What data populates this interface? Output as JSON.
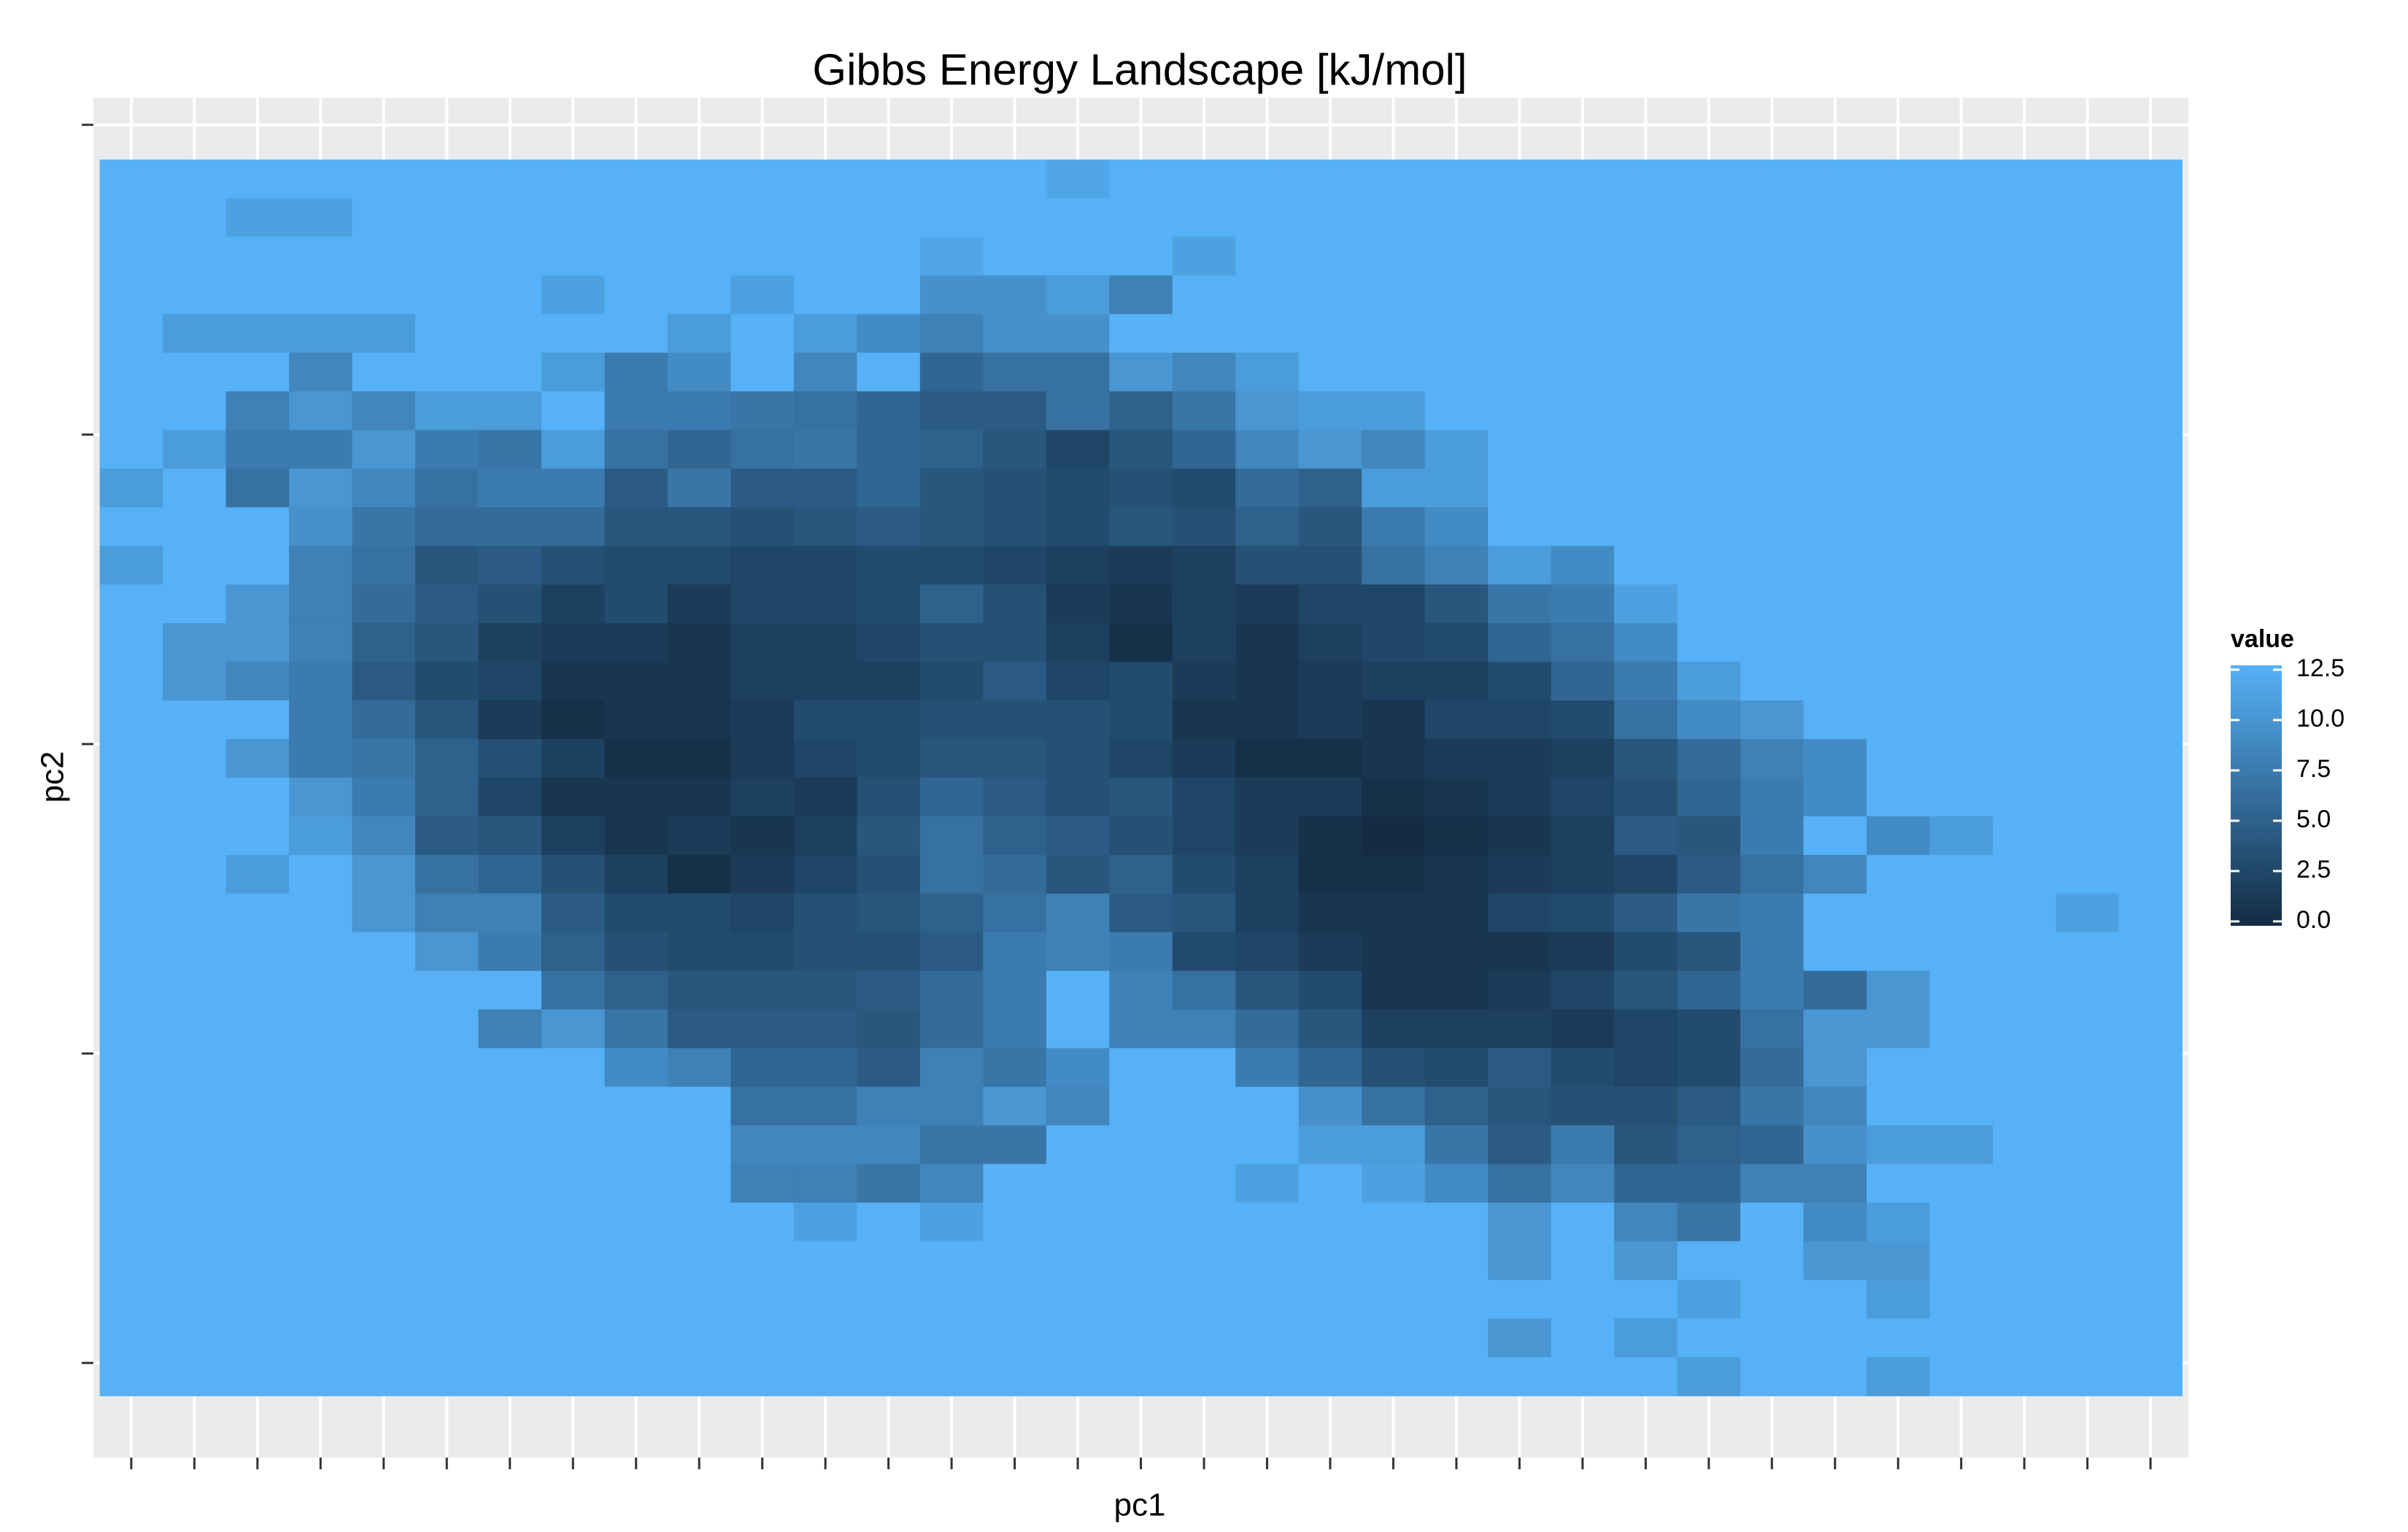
{
  "chart_data": {
    "type": "heatmap",
    "title": "Gibbs Energy Landscape [kJ/mol]",
    "xlabel": "pc1",
    "ylabel": "pc2",
    "x": [
      1,
      2,
      3,
      4,
      5,
      6,
      7,
      8,
      9,
      10,
      11,
      12,
      13,
      14,
      15,
      16,
      17,
      18,
      19,
      20,
      21,
      22,
      23,
      24,
      25,
      26,
      27,
      28,
      29,
      30,
      31,
      32,
      33
    ],
    "y": [
      32,
      31,
      30,
      29,
      28,
      27,
      26,
      25,
      24,
      23,
      22,
      21,
      20,
      19,
      18,
      17,
      16,
      15,
      14,
      13,
      12,
      11,
      10,
      9,
      8,
      7,
      6,
      5,
      4,
      3,
      2,
      1
    ],
    "xlim": [
      0.4,
      33.6
    ],
    "ylim": [
      -1.1,
      34.1
    ],
    "xticks": [
      1,
      2,
      3,
      4,
      5,
      6,
      7,
      8,
      9,
      10,
      11,
      12,
      13,
      14,
      15,
      16,
      17,
      18,
      19,
      20,
      21,
      22,
      23,
      24,
      25,
      26,
      27,
      28,
      29,
      30,
      31,
      32,
      33
    ],
    "yticks": [
      1.35,
      9.36,
      17.37,
      25.38,
      33.4
    ],
    "grid": true,
    "legend": {
      "title": "value",
      "position": "right",
      "colors": [
        "#132B43",
        "#56B1F7"
      ],
      "lim": [
        0,
        12.5
      ],
      "ticks": [
        {
          "value": 0,
          "label": "0.0"
        },
        2.5,
        {
          "value": 5,
          "label": "5.0"
        },
        7.5,
        {
          "value": 10,
          "label": "10.0"
        },
        12.5
      ]
    },
    "z": [
      [
        12.5,
        12.5,
        12.5,
        12.5,
        12.5,
        12.5,
        12.5,
        12.5,
        12.5,
        12.5,
        12.5,
        12.5,
        12.5,
        12.5,
        12.5,
        11.5,
        12.5,
        12.5,
        12.5,
        12.5,
        12.5,
        12.5,
        12.5,
        12.5,
        12.5,
        12.5,
        12.5,
        12.5,
        12.5,
        12.5,
        12.5,
        12.5,
        12.5
      ],
      [
        12.5,
        12.5,
        11,
        11,
        12.5,
        12.5,
        12.5,
        12.5,
        12.5,
        12.5,
        12.5,
        12.5,
        12.5,
        12.5,
        12.5,
        12.5,
        12.5,
        12.5,
        12.5,
        12.5,
        12.5,
        12.5,
        12.5,
        12.5,
        12.5,
        12.5,
        12.5,
        12.5,
        12.5,
        12.5,
        12.5,
        12.5,
        12.5
      ],
      [
        12.5,
        12.5,
        12.5,
        12.5,
        12.5,
        12.5,
        12.5,
        12.5,
        12.5,
        12.5,
        12.5,
        12.5,
        12.5,
        11.5,
        12.5,
        12.5,
        12.5,
        11,
        12.5,
        12.5,
        12.5,
        12.5,
        12.5,
        12.5,
        12.5,
        12.5,
        12.5,
        12.5,
        12.5,
        12.5,
        12.5,
        12.5,
        12.5
      ],
      [
        12.5,
        12.5,
        12.5,
        12.5,
        12.5,
        12.5,
        12.5,
        11,
        12.5,
        12.5,
        11,
        12.5,
        12.5,
        9.5,
        9.5,
        10.5,
        8,
        12.5,
        12.5,
        12.5,
        12.5,
        12.5,
        12.5,
        12.5,
        12.5,
        12.5,
        12.5,
        12.5,
        12.5,
        12.5,
        12.5,
        12.5,
        12.5
      ],
      [
        12.5,
        10.5,
        10.5,
        10.5,
        10.5,
        12.5,
        12.5,
        12.5,
        12.5,
        10.5,
        12.5,
        10.5,
        9,
        8,
        9.5,
        9.5,
        12.5,
        12.5,
        12.5,
        12.5,
        12.5,
        12.5,
        12.5,
        12.5,
        12.5,
        12.5,
        12.5,
        12.5,
        12.5,
        12.5,
        12.5,
        12.5,
        12.5
      ],
      [
        12.5,
        12.5,
        12.5,
        8.5,
        12.5,
        12.5,
        12.5,
        10.5,
        7.5,
        9,
        12.5,
        8.5,
        12.5,
        5.5,
        6.5,
        6.5,
        10,
        8.5,
        10.5,
        12.5,
        12.5,
        12.5,
        12.5,
        12.5,
        12.5,
        12.5,
        12.5,
        12.5,
        12.5,
        12.5,
        12.5,
        12.5,
        12.5
      ],
      [
        12.5,
        12.5,
        8,
        10,
        8.5,
        10.5,
        10.5,
        12.5,
        7.5,
        7.5,
        7,
        6.5,
        5.5,
        4.5,
        4.5,
        6.5,
        5,
        7,
        10,
        10.5,
        10.5,
        12.5,
        12.5,
        12.5,
        12.5,
        12.5,
        12.5,
        12.5,
        12.5,
        12.5,
        12.5,
        12.5,
        12.5
      ],
      [
        12.5,
        10.5,
        7.5,
        7.5,
        10,
        7.5,
        7,
        10.5,
        6.5,
        5.5,
        6.5,
        7,
        5.5,
        5,
        4,
        2.5,
        4,
        5.5,
        8.5,
        10,
        8.5,
        10.5,
        12.5,
        12.5,
        12.5,
        12.5,
        12.5,
        12.5,
        12.5,
        12.5,
        12.5,
        12.5,
        12.5
      ],
      [
        10.5,
        12.5,
        6.5,
        10,
        8.5,
        6.5,
        7.5,
        7.5,
        4.5,
        7,
        4.5,
        4.5,
        5.5,
        4,
        3.5,
        3,
        3.5,
        3,
        6,
        5,
        10.5,
        10.5,
        12.5,
        12.5,
        12.5,
        12.5,
        12.5,
        12.5,
        12.5,
        12.5,
        12.5,
        12.5,
        12.5
      ],
      [
        12.5,
        12.5,
        12.5,
        9.5,
        7,
        6,
        6,
        6,
        4,
        4,
        3.5,
        4,
        4.5,
        4,
        3.5,
        3,
        4,
        3.5,
        5,
        4,
        7.5,
        9,
        12.5,
        12.5,
        12.5,
        12.5,
        12.5,
        12.5,
        12.5,
        12.5,
        12.5,
        12.5,
        12.5
      ],
      [
        10.5,
        12.5,
        12.5,
        8,
        6.5,
        4,
        4.5,
        3.5,
        3,
        3,
        2.5,
        2.5,
        3,
        3,
        2.5,
        2,
        1.5,
        2,
        3.5,
        3.5,
        6.5,
        8,
        10.5,
        9,
        12.5,
        12.5,
        12.5,
        12.5,
        12.5,
        12.5,
        12.5,
        12.5,
        12.5
      ],
      [
        12.5,
        12.5,
        10,
        8,
        6,
        4.5,
        3.5,
        2,
        3,
        1.5,
        2.5,
        2.5,
        3,
        5,
        3.5,
        1.5,
        1,
        2,
        1.5,
        2.5,
        2.5,
        4,
        7,
        7.5,
        11,
        12.5,
        12.5,
        12.5,
        12.5,
        12.5,
        12.5,
        12.5,
        12.5
      ],
      [
        12.5,
        10,
        10,
        8,
        5,
        4,
        2,
        1.5,
        1.5,
        1,
        2,
        2,
        2.5,
        3.5,
        3.5,
        2,
        0.5,
        2,
        1,
        2,
        2.5,
        3,
        5.5,
        6.5,
        9,
        12.5,
        12.5,
        12.5,
        12.5,
        12.5,
        12.5,
        12.5,
        12.5
      ],
      [
        12.5,
        10,
        8.5,
        7.5,
        4.5,
        3,
        2.5,
        1,
        1,
        1,
        2,
        2,
        2,
        3,
        4.5,
        2.5,
        3,
        1.5,
        1,
        1.5,
        2,
        2,
        3,
        5.5,
        7.5,
        10.5,
        12.5,
        12.5,
        12.5,
        12.5,
        12.5,
        12.5,
        12.5
      ],
      [
        12.5,
        12.5,
        12.5,
        7.5,
        6,
        4,
        1.5,
        0.5,
        1,
        1,
        1.5,
        3,
        3,
        3.5,
        3.5,
        3.5,
        3,
        1,
        1,
        1.5,
        1,
        2.5,
        2.5,
        3,
        6.5,
        9,
        10,
        12.5,
        12.5,
        12.5,
        12.5,
        12.5,
        12.5
      ],
      [
        12.5,
        12.5,
        10,
        7.5,
        7,
        5,
        3.5,
        2,
        0.5,
        0.5,
        1.5,
        2.5,
        3,
        4,
        4,
        3.5,
        2.5,
        1.5,
        0.5,
        0.5,
        1,
        1.5,
        1.5,
        2,
        4,
        6,
        8,
        9,
        12.5,
        12.5,
        12.5,
        12.5,
        12.5
      ],
      [
        12.5,
        12.5,
        12.5,
        10,
        7.5,
        5,
        2.5,
        1,
        1,
        1,
        2,
        1.5,
        3.5,
        5.5,
        4.5,
        3.5,
        4,
        2.5,
        1.5,
        1.5,
        0.5,
        1,
        1.5,
        2.5,
        3.5,
        5.5,
        7.5,
        9,
        12.5,
        12.5,
        12.5,
        12.5,
        12.5
      ],
      [
        12.5,
        12.5,
        12.5,
        10.5,
        8.5,
        4.5,
        4,
        2,
        1,
        1.5,
        1,
        2,
        4,
        6.5,
        5,
        4.5,
        3.5,
        2.5,
        1.5,
        0.5,
        0,
        0.5,
        1,
        2,
        4.5,
        4,
        7.5,
        12.5,
        9,
        10.5,
        12.5,
        12.5,
        12.5
      ],
      [
        12.5,
        12.5,
        10.5,
        12.5,
        10,
        6.5,
        5.5,
        3.5,
        2,
        0.5,
        1.5,
        2.5,
        3.5,
        6.5,
        6,
        4,
        5,
        3,
        2,
        0.5,
        0.5,
        1,
        1.5,
        2,
        2.5,
        4.5,
        6.5,
        8.5,
        12.5,
        12.5,
        12.5,
        12.5,
        12.5
      ],
      [
        12.5,
        12.5,
        12.5,
        12.5,
        10,
        8,
        8,
        4.5,
        3,
        3,
        2.5,
        3.5,
        4,
        5,
        6.5,
        8,
        4.5,
        4,
        2,
        1,
        1,
        1,
        2.5,
        3,
        4.5,
        7,
        7.5,
        12.5,
        12.5,
        12.5,
        12.5,
        11,
        12.5
      ],
      [
        12.5,
        12.5,
        12.5,
        12.5,
        12.5,
        10,
        7.5,
        5,
        3.5,
        3,
        3,
        3.5,
        3.5,
        4.5,
        7.5,
        8,
        7.5,
        3,
        2.5,
        1.5,
        1,
        1,
        1,
        1.5,
        3,
        4,
        7.5,
        12.5,
        12.5,
        12.5,
        12.5,
        12.5,
        12.5
      ],
      [
        12.5,
        12.5,
        12.5,
        12.5,
        12.5,
        12.5,
        12.5,
        6.5,
        5,
        4,
        4,
        4,
        4.5,
        6,
        7.5,
        12.5,
        8,
        6.5,
        4,
        3,
        1,
        1,
        1.5,
        2.5,
        4,
        5.5,
        7.5,
        6,
        10,
        12.5,
        12.5,
        12.5,
        12.5
      ],
      [
        12.5,
        12.5,
        12.5,
        12.5,
        12.5,
        12.5,
        8,
        10,
        7,
        4.5,
        4.5,
        4.5,
        4,
        6,
        7.5,
        12.5,
        8,
        8,
        6,
        4,
        2,
        2,
        2,
        1.5,
        2.5,
        3,
        6.5,
        10,
        10,
        12.5,
        12.5,
        12.5,
        12.5
      ],
      [
        12.5,
        12.5,
        12.5,
        12.5,
        12.5,
        12.5,
        12.5,
        12.5,
        9,
        8,
        5.5,
        5.5,
        4.5,
        8,
        7,
        9,
        12.5,
        12.5,
        7.5,
        5.5,
        3.5,
        3,
        4.5,
        3,
        2.5,
        3,
        6,
        10,
        12.5,
        12.5,
        12.5,
        12.5,
        12.5
      ],
      [
        12.5,
        12.5,
        12.5,
        12.5,
        12.5,
        12.5,
        12.5,
        12.5,
        12.5,
        12.5,
        6.5,
        6.5,
        8,
        8,
        10,
        8.5,
        12.5,
        12.5,
        12.5,
        9.5,
        6.5,
        5,
        4,
        3.5,
        3.5,
        4.5,
        7,
        8.5,
        12.5,
        12.5,
        12.5,
        12.5,
        12.5
      ],
      [
        12.5,
        12.5,
        12.5,
        12.5,
        12.5,
        12.5,
        12.5,
        12.5,
        12.5,
        12.5,
        8.5,
        8.5,
        8.5,
        7,
        7,
        12.5,
        12.5,
        12.5,
        12.5,
        10.5,
        10.5,
        7,
        4.5,
        7.5,
        4,
        5,
        5.5,
        9.5,
        10.5,
        10.5,
        12.5,
        12.5,
        12.5
      ],
      [
        12.5,
        12.5,
        12.5,
        12.5,
        12.5,
        12.5,
        12.5,
        12.5,
        12.5,
        12.5,
        8,
        8,
        7,
        8.5,
        12.5,
        12.5,
        12.5,
        12.5,
        11,
        12.5,
        11,
        9,
        6.5,
        8.5,
        5.5,
        5.5,
        8,
        8,
        12.5,
        12.5,
        12.5,
        12.5,
        12.5
      ],
      [
        12.5,
        12.5,
        12.5,
        12.5,
        12.5,
        12.5,
        12.5,
        12.5,
        12.5,
        12.5,
        12.5,
        11,
        12.5,
        11,
        12.5,
        12.5,
        12.5,
        12.5,
        12.5,
        12.5,
        12.5,
        12.5,
        10,
        12.5,
        8.5,
        7,
        12.5,
        9,
        10.5,
        12.5,
        12.5,
        12.5,
        12.5
      ],
      [
        12.5,
        12.5,
        12.5,
        12.5,
        12.5,
        12.5,
        12.5,
        12.5,
        12.5,
        12.5,
        12.5,
        12.5,
        12.5,
        12.5,
        12.5,
        12.5,
        12.5,
        12.5,
        12.5,
        12.5,
        12.5,
        12.5,
        10,
        12.5,
        10,
        12.5,
        12.5,
        10,
        10,
        12.5,
        12.5,
        12.5,
        12.5
      ],
      [
        12.5,
        12.5,
        12.5,
        12.5,
        12.5,
        12.5,
        12.5,
        12.5,
        12.5,
        12.5,
        12.5,
        12.5,
        12.5,
        12.5,
        12.5,
        12.5,
        12.5,
        12.5,
        12.5,
        12.5,
        12.5,
        12.5,
        12.5,
        12.5,
        12.5,
        11,
        12.5,
        12.5,
        10.5,
        12.5,
        12.5,
        12.5,
        12.5
      ],
      [
        12.5,
        12.5,
        12.5,
        12.5,
        12.5,
        12.5,
        12.5,
        12.5,
        12.5,
        12.5,
        12.5,
        12.5,
        12.5,
        12.5,
        12.5,
        12.5,
        12.5,
        12.5,
        12.5,
        12.5,
        12.5,
        12.5,
        10,
        12.5,
        10.5,
        12.5,
        12.5,
        12.5,
        12.5,
        12.5,
        12.5,
        12.5,
        12.5
      ],
      [
        12.5,
        12.5,
        12.5,
        12.5,
        12.5,
        12.5,
        12.5,
        12.5,
        12.5,
        12.5,
        12.5,
        12.5,
        12.5,
        12.5,
        12.5,
        12.5,
        12.5,
        12.5,
        12.5,
        12.5,
        12.5,
        12.5,
        12.5,
        12.5,
        12.5,
        10.5,
        12.5,
        12.5,
        10.5,
        12.5,
        12.5,
        12.5,
        12.5
      ]
    ]
  }
}
